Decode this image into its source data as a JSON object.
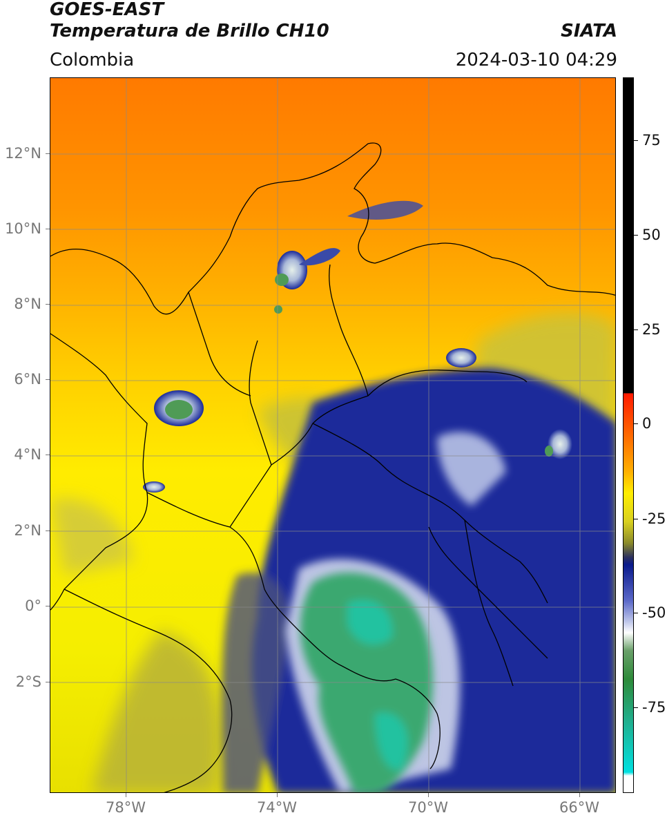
{
  "header": {
    "title_line1": "GOES-EAST",
    "title_line2": "Temperatura de Brillo CH10",
    "source": "SIATA",
    "region": "Colombia",
    "timestamp": "2024-03-10 04:29"
  },
  "map": {
    "latitude_labels": [
      "12°N",
      "10°N",
      "8°N",
      "6°N",
      "4°N",
      "2°N",
      "0°",
      "2°S"
    ],
    "longitude_labels": [
      "78°W",
      "74°W",
      "70°W",
      "66°W"
    ],
    "gridlines": true
  },
  "colorbar": {
    "tick_labels": [
      "75",
      "50",
      "25",
      "0",
      "-25",
      "-50",
      "-75"
    ],
    "colors": {
      "black": "#000000",
      "red": "#ff1a00",
      "orange": "#ff8c00",
      "yellow": "#ffee00",
      "olive": "#8a8a2a",
      "navy": "#0a1a8c",
      "white": "#ffffff",
      "green": "#2e8b3a",
      "cyan": "#00e0e0"
    }
  }
}
